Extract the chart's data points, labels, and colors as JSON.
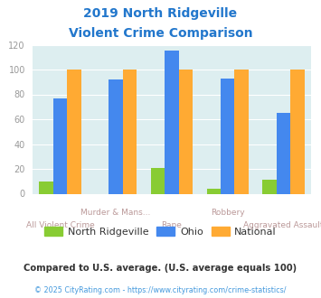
{
  "title_line1": "2019 North Ridgeville",
  "title_line2": "Violent Crime Comparison",
  "categories": [
    "All Violent Crime",
    "Murder & Mans...",
    "Rape",
    "Robbery",
    "Aggravated Assault"
  ],
  "north_ridgeville": [
    10,
    0,
    21,
    4,
    11
  ],
  "ohio": [
    77,
    92,
    115,
    93,
    65
  ],
  "national": [
    100,
    100,
    100,
    100,
    100
  ],
  "color_nr": "#88cc33",
  "color_ohio": "#4488ee",
  "color_national": "#ffaa33",
  "ylim": [
    0,
    120
  ],
  "yticks": [
    0,
    20,
    40,
    60,
    80,
    100,
    120
  ],
  "legend_labels": [
    "North Ridgeville",
    "Ohio",
    "National"
  ],
  "footnote1": "Compared to U.S. average. (U.S. average equals 100)",
  "footnote2": "© 2025 CityRating.com - https://www.cityrating.com/crime-statistics/",
  "bg_color": "#ddeef0",
  "title_color": "#2277cc",
  "xtick_color_top": "#bb9999",
  "xtick_color_bot": "#bb9999",
  "footnote1_color": "#333333",
  "footnote2_color": "#4499dd",
  "legend_text_color": "#333333",
  "ytick_color": "#999999",
  "bar_width": 0.25
}
